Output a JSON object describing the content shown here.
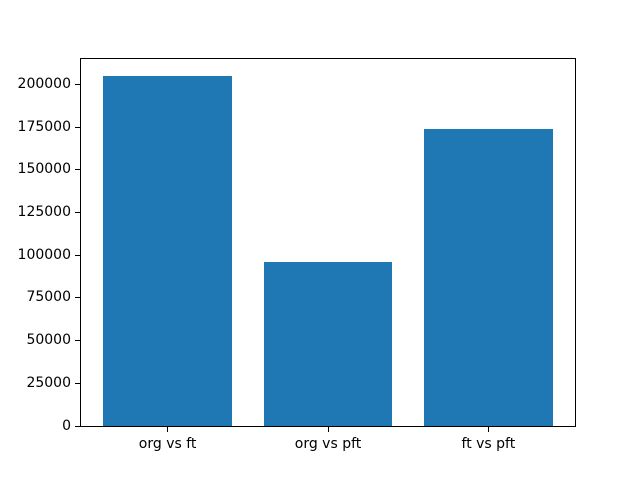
{
  "chart_data": {
    "type": "bar",
    "categories": [
      "org vs ft",
      "org vs pft",
      "ft vs pft"
    ],
    "values": [
      204700,
      95900,
      173900
    ],
    "title": "",
    "xlabel": "",
    "ylabel": "",
    "ylim": [
      0,
      214800
    ],
    "yticks": [
      0,
      25000,
      50000,
      75000,
      100000,
      125000,
      150000,
      175000,
      200000
    ],
    "ytick_labels": [
      "0",
      "25000",
      "50000",
      "75000",
      "100000",
      "125000",
      "150000",
      "175000",
      "200000"
    ],
    "bar_color": "#1f77b4",
    "axes_background": "#ffffff",
    "figure_background": "#ffffff",
    "spine_color": "#000000",
    "grid": false,
    "legend": null,
    "bar_width_fraction": 0.8
  }
}
